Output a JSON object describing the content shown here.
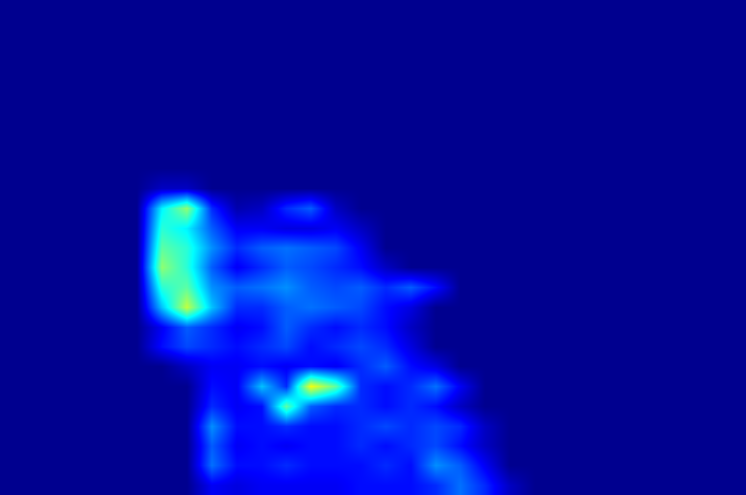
{
  "chart_data": {
    "type": "heatmap",
    "tick_labels": false,
    "zlim": [
      0,
      1
    ],
    "cells": [
      [
        0,
        0,
        0,
        0,
        0,
        0,
        0,
        0,
        0,
        0,
        0,
        0,
        0,
        0,
        0,
        0,
        0,
        0,
        0,
        0,
        0,
        0,
        0,
        0,
        0,
        0,
        0,
        0,
        0,
        0
      ],
      [
        0,
        0,
        0,
        0,
        0,
        0,
        0,
        0,
        0,
        0,
        0,
        0,
        0,
        0,
        0,
        0,
        0,
        0,
        0,
        0,
        0,
        0,
        0,
        0,
        0,
        0,
        0,
        0,
        0,
        0
      ],
      [
        0,
        0,
        0,
        0,
        0,
        0,
        0,
        0,
        0,
        0,
        0,
        0,
        0,
        0,
        0,
        0,
        0,
        0,
        0,
        0,
        0,
        0,
        0,
        0,
        0,
        0,
        0,
        0,
        0,
        0
      ],
      [
        0,
        0,
        0,
        0,
        0,
        0,
        0,
        0,
        0,
        0,
        0,
        0,
        0,
        0,
        0,
        0,
        0,
        0,
        0,
        0,
        0,
        0,
        0,
        0,
        0,
        0,
        0,
        0,
        0,
        0
      ],
      [
        0,
        0,
        0,
        0,
        0,
        0,
        0,
        0,
        0,
        0,
        0,
        0,
        0,
        0,
        0,
        0,
        0,
        0,
        0,
        0,
        0,
        0,
        0,
        0,
        0,
        0,
        0,
        0,
        0,
        0
      ],
      [
        0,
        0,
        0,
        0,
        0,
        0,
        0,
        0,
        0,
        0,
        0,
        0,
        0,
        0,
        0,
        0,
        0,
        0,
        0,
        0,
        0,
        0,
        0,
        0,
        0,
        0,
        0,
        0,
        0,
        0
      ],
      [
        0,
        0,
        0,
        0,
        0,
        0,
        0,
        0,
        0,
        0,
        0,
        0,
        0,
        0,
        0,
        0,
        0,
        0,
        0,
        0,
        0,
        0,
        0,
        0,
        0,
        0,
        0,
        0,
        0,
        0
      ],
      [
        0,
        0,
        0,
        0,
        0,
        0,
        0,
        0,
        0,
        0,
        0,
        0,
        0,
        0,
        0,
        0,
        0,
        0,
        0,
        0,
        0,
        0,
        0,
        0,
        0,
        0,
        0,
        0,
        0,
        0
      ],
      [
        0,
        0,
        0,
        0,
        0,
        0,
        0,
        0,
        0,
        0,
        0,
        0,
        0,
        0,
        0,
        0,
        0,
        0,
        0,
        0,
        0,
        0,
        0,
        0,
        0,
        0,
        0,
        0,
        0,
        0
      ],
      [
        0,
        0,
        0,
        0,
        0,
        0,
        0.05,
        0.05,
        0,
        0,
        0,
        0,
        0,
        0,
        0,
        0,
        0,
        0,
        0,
        0,
        0,
        0,
        0,
        0,
        0,
        0,
        0,
        0,
        0,
        0
      ],
      [
        0,
        0,
        0,
        0,
        0,
        0,
        0.35,
        0.5,
        0.15,
        0.03,
        0.05,
        0.15,
        0.2,
        0.05,
        0,
        0,
        0,
        0,
        0,
        0,
        0,
        0,
        0,
        0,
        0,
        0,
        0,
        0,
        0,
        0
      ],
      [
        0,
        0,
        0,
        0,
        0,
        0,
        0.4,
        0.35,
        0.2,
        0.1,
        0.1,
        0.08,
        0.08,
        0.1,
        0.05,
        0,
        0,
        0,
        0,
        0,
        0,
        0,
        0,
        0,
        0,
        0,
        0,
        0,
        0,
        0
      ],
      [
        0,
        0,
        0,
        0,
        0,
        0,
        0.45,
        0.4,
        0.25,
        0.15,
        0.2,
        0.22,
        0.2,
        0.18,
        0.1,
        0,
        0,
        0,
        0,
        0,
        0,
        0,
        0,
        0,
        0,
        0,
        0,
        0,
        0,
        0
      ],
      [
        0,
        0,
        0,
        0,
        0,
        0,
        0.5,
        0.4,
        0.2,
        0.1,
        0.15,
        0.2,
        0.18,
        0.15,
        0.12,
        0.05,
        0,
        0,
        0,
        0,
        0,
        0,
        0,
        0,
        0,
        0,
        0,
        0,
        0,
        0
      ],
      [
        0,
        0,
        0,
        0,
        0,
        0,
        0.4,
        0.45,
        0.25,
        0.2,
        0.22,
        0.25,
        0.2,
        0.18,
        0.2,
        0.15,
        0.2,
        0.12,
        0,
        0,
        0,
        0,
        0,
        0,
        0,
        0,
        0,
        0,
        0,
        0
      ],
      [
        0,
        0,
        0,
        0,
        0,
        0,
        0.3,
        0.55,
        0.3,
        0.15,
        0.15,
        0.2,
        0.22,
        0.2,
        0.18,
        0.12,
        0.08,
        0,
        0,
        0,
        0,
        0,
        0,
        0,
        0,
        0,
        0,
        0,
        0,
        0
      ],
      [
        0,
        0,
        0,
        0,
        0,
        0,
        0.1,
        0.2,
        0.15,
        0.1,
        0.12,
        0.2,
        0.15,
        0.12,
        0.15,
        0.12,
        0.05,
        0,
        0,
        0,
        0,
        0,
        0,
        0,
        0,
        0,
        0,
        0,
        0,
        0
      ],
      [
        0,
        0,
        0,
        0,
        0,
        0,
        0.12,
        0.18,
        0.15,
        0.12,
        0.15,
        0.18,
        0.12,
        0.15,
        0.18,
        0.15,
        0.08,
        0,
        0,
        0,
        0,
        0,
        0,
        0,
        0,
        0,
        0,
        0,
        0,
        0
      ],
      [
        0,
        0,
        0,
        0,
        0,
        0,
        0,
        0.05,
        0.1,
        0.1,
        0.12,
        0.1,
        0.12,
        0.1,
        0.15,
        0.2,
        0.12,
        0.08,
        0,
        0,
        0,
        0,
        0,
        0,
        0,
        0,
        0,
        0,
        0,
        0
      ],
      [
        0,
        0,
        0,
        0,
        0,
        0,
        0,
        0,
        0.12,
        0.1,
        0.3,
        0.15,
        0.6,
        0.45,
        0.15,
        0.12,
        0.15,
        0.22,
        0.1,
        0,
        0,
        0,
        0,
        0,
        0,
        0,
        0,
        0,
        0,
        0
      ],
      [
        0,
        0,
        0,
        0,
        0,
        0,
        0,
        0,
        0.15,
        0.1,
        0.12,
        0.45,
        0.2,
        0.15,
        0.15,
        0.12,
        0.15,
        0.12,
        0.05,
        0,
        0,
        0,
        0,
        0,
        0,
        0,
        0,
        0,
        0,
        0
      ],
      [
        0,
        0,
        0,
        0,
        0,
        0,
        0,
        0,
        0.25,
        0.12,
        0.12,
        0.15,
        0.12,
        0.12,
        0.15,
        0.18,
        0.15,
        0.18,
        0.15,
        0.05,
        0,
        0,
        0,
        0,
        0,
        0,
        0,
        0,
        0,
        0
      ],
      [
        0,
        0,
        0,
        0,
        0,
        0,
        0,
        0,
        0.2,
        0.1,
        0.12,
        0.1,
        0.12,
        0.12,
        0.15,
        0.12,
        0.15,
        0.18,
        0.12,
        0.05,
        0,
        0,
        0,
        0,
        0,
        0,
        0,
        0,
        0,
        0
      ],
      [
        0,
        0,
        0,
        0,
        0,
        0,
        0,
        0,
        0.22,
        0.12,
        0.12,
        0.15,
        0.12,
        0.12,
        0.12,
        0.15,
        0.12,
        0.25,
        0.2,
        0.1,
        0,
        0,
        0,
        0,
        0,
        0,
        0,
        0,
        0,
        0
      ],
      [
        0,
        0,
        0,
        0,
        0,
        0,
        0,
        0,
        0.1,
        0.08,
        0.1,
        0.1,
        0.1,
        0.1,
        0.12,
        0.12,
        0.12,
        0.15,
        0.22,
        0.15,
        0.05,
        0,
        0,
        0,
        0,
        0,
        0,
        0,
        0,
        0
      ]
    ]
  }
}
